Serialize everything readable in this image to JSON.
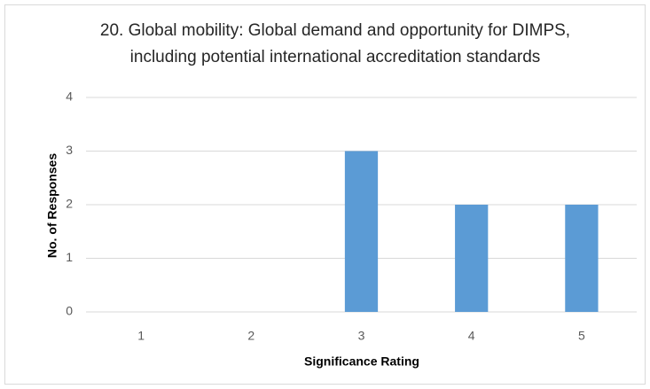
{
  "chart_data": {
    "type": "bar",
    "title": "20. Global mobility: Global demand and opportunity for DIMPS, including potential international accreditation standards",
    "x_label": "Significance Rating",
    "y_label": "No. of Responses",
    "categories": [
      "1",
      "2",
      "3",
      "4",
      "5"
    ],
    "values": [
      0,
      0,
      3,
      2,
      2
    ],
    "color": "#5b9bd5",
    "ylim": [
      0,
      4
    ],
    "yticks": [
      0,
      1,
      2,
      3,
      4
    ],
    "grid": true
  }
}
